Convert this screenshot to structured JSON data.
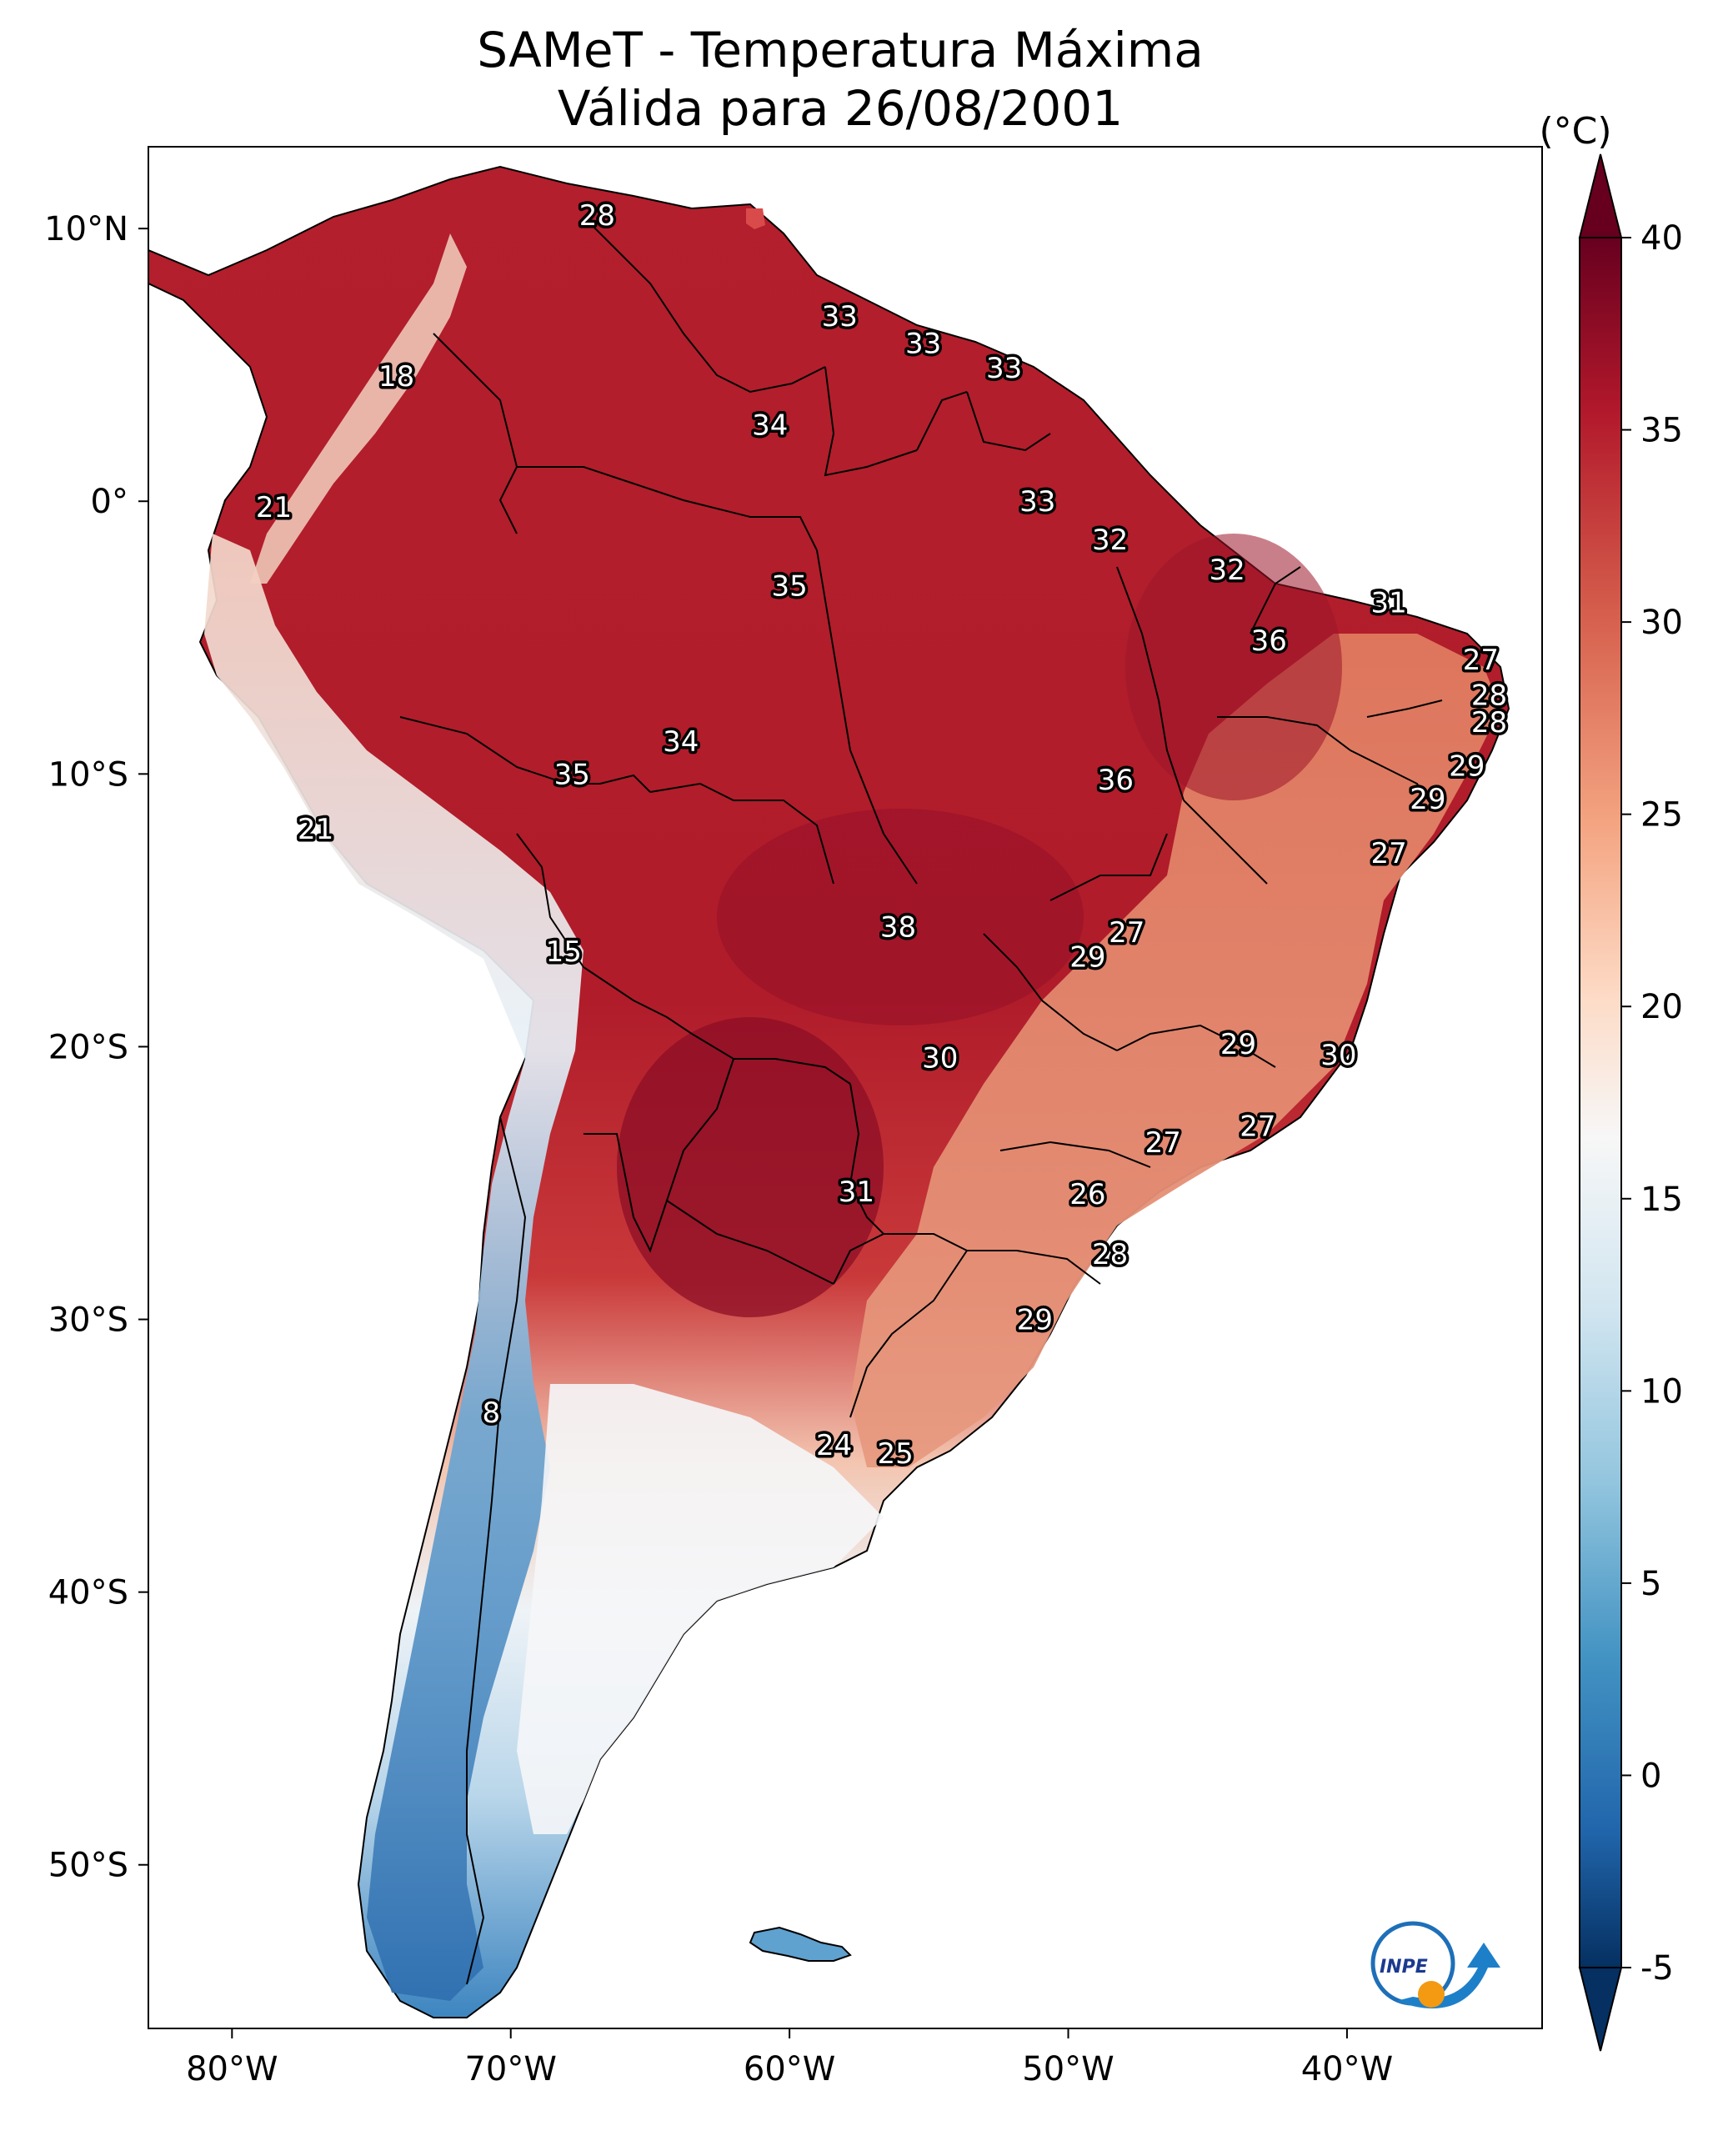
{
  "title_line1": "SAMeT - Temperatura Máxima",
  "title_line2": "Válida para 26/08/2001",
  "colorbar": {
    "unit": "(°C)",
    "ticks": [
      "40",
      "35",
      "30",
      "25",
      "20",
      "15",
      "10",
      "5",
      "0",
      "-5"
    ],
    "tick_values": [
      40,
      35,
      30,
      25,
      20,
      15,
      10,
      5,
      0,
      -5
    ],
    "range": [
      -5,
      40
    ],
    "colors": [
      "#67001f",
      "#b2182b",
      "#d6604d",
      "#f4a582",
      "#fddbc7",
      "#f7f7f7",
      "#d1e5f0",
      "#92c5de",
      "#4393c3",
      "#2166ac",
      "#053061"
    ]
  },
  "axes": {
    "lon_labels": [
      "80°W",
      "70°W",
      "60°W",
      "50°W",
      "40°W"
    ],
    "lon_values": [
      -80,
      -70,
      -60,
      -50,
      -40
    ],
    "lat_labels": [
      "10°N",
      "0°",
      "10°S",
      "20°S",
      "30°S",
      "40°S",
      "50°S"
    ],
    "lat_values": [
      10,
      0,
      -10,
      -20,
      -30,
      -40,
      -50
    ],
    "lon_range": [
      -83,
      -33
    ],
    "lat_range": [
      13,
      -56
    ]
  },
  "cities": [
    {
      "label": "28",
      "lon": -66.9,
      "lat": 10.5
    },
    {
      "label": "18",
      "lon": -74.1,
      "lat": 4.6
    },
    {
      "label": "33",
      "lon": -58.2,
      "lat": 6.8
    },
    {
      "label": "33",
      "lon": -55.2,
      "lat": 5.8
    },
    {
      "label": "33",
      "lon": -52.3,
      "lat": 4.9
    },
    {
      "label": "34",
      "lon": -60.7,
      "lat": 2.8
    },
    {
      "label": "21",
      "lon": -78.5,
      "lat": -0.2
    },
    {
      "label": "33",
      "lon": -51.1,
      "lat": 0.0
    },
    {
      "label": "32",
      "lon": -48.5,
      "lat": -1.4
    },
    {
      "label": "35",
      "lon": -60.0,
      "lat": -3.1
    },
    {
      "label": "32",
      "lon": -44.3,
      "lat": -2.5
    },
    {
      "label": "31",
      "lon": -38.5,
      "lat": -3.7
    },
    {
      "label": "36",
      "lon": -42.8,
      "lat": -5.1
    },
    {
      "label": "27",
      "lon": -35.2,
      "lat": -5.8
    },
    {
      "label": "28",
      "lon": -34.9,
      "lat": -7.1
    },
    {
      "label": "28",
      "lon": -34.9,
      "lat": -8.1
    },
    {
      "label": "34",
      "lon": -63.9,
      "lat": -8.8
    },
    {
      "label": "35",
      "lon": -67.8,
      "lat": -10.0
    },
    {
      "label": "36",
      "lon": -48.3,
      "lat": -10.2
    },
    {
      "label": "29",
      "lon": -35.7,
      "lat": -9.7
    },
    {
      "label": "29",
      "lon": -37.1,
      "lat": -10.9
    },
    {
      "label": "21",
      "lon": -77.0,
      "lat": -12.0
    },
    {
      "label": "27",
      "lon": -38.5,
      "lat": -12.9
    },
    {
      "label": "27",
      "lon": -47.9,
      "lat": -15.8
    },
    {
      "label": "38",
      "lon": -56.1,
      "lat": -15.6
    },
    {
      "label": "29",
      "lon": -49.3,
      "lat": -16.7
    },
    {
      "label": "15",
      "lon": -68.1,
      "lat": -16.5
    },
    {
      "label": "29",
      "lon": -43.9,
      "lat": -19.9
    },
    {
      "label": "30",
      "lon": -54.6,
      "lat": -20.4
    },
    {
      "label": "30",
      "lon": -40.3,
      "lat": -20.3
    },
    {
      "label": "27",
      "lon": -43.2,
      "lat": -22.9
    },
    {
      "label": "27",
      "lon": -46.6,
      "lat": -23.5
    },
    {
      "label": "31",
      "lon": -57.6,
      "lat": -25.3
    },
    {
      "label": "26",
      "lon": -49.3,
      "lat": -25.4
    },
    {
      "label": "28",
      "lon": -48.5,
      "lat": -27.6
    },
    {
      "label": "29",
      "lon": -51.2,
      "lat": -30.0
    },
    {
      "label": "8",
      "lon": -70.7,
      "lat": -33.4
    },
    {
      "label": "24",
      "lon": -58.4,
      "lat": -34.6
    },
    {
      "label": "25",
      "lon": -56.2,
      "lat": -34.9
    }
  ],
  "logo": {
    "text": "INPE"
  }
}
